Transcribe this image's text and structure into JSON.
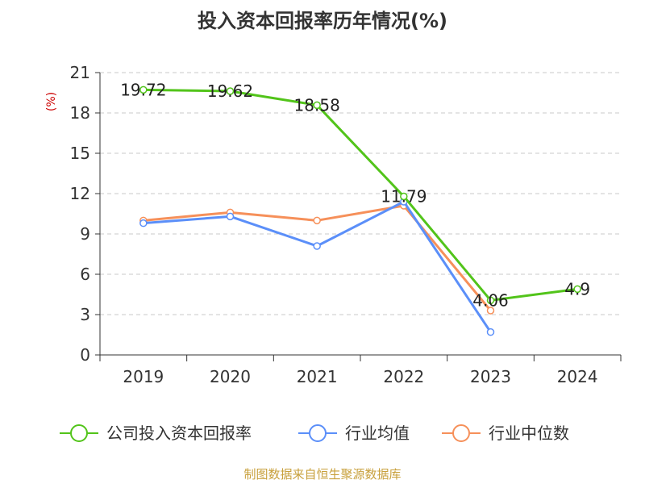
{
  "chart_data": {
    "type": "line",
    "title": "投入资本回报率历年情况(%)",
    "ylabel": "(%)",
    "xlabel": "",
    "categories": [
      "2019",
      "2020",
      "2021",
      "2022",
      "2023",
      "2024"
    ],
    "ylim": [
      0,
      21
    ],
    "yticks": [
      0,
      3,
      6,
      9,
      12,
      15,
      18,
      21
    ],
    "grid": true,
    "legend_position": "bottom",
    "series": [
      {
        "name": "公司投入资本回报率",
        "color": "#52c41a",
        "values": [
          19.72,
          19.62,
          18.58,
          11.79,
          4.06,
          4.9
        ],
        "labels": [
          "19.72",
          "19.62",
          "18.58",
          "11.79",
          "4.06",
          "4.9"
        ]
      },
      {
        "name": "行业均值",
        "color": "#5b8ff9",
        "values": [
          9.8,
          10.3,
          8.1,
          11.4,
          1.7,
          null
        ]
      },
      {
        "name": "行业中位数",
        "color": "#f6905a",
        "values": [
          10.0,
          10.6,
          10.0,
          11.1,
          3.3,
          null
        ]
      }
    ]
  },
  "source": "制图数据来自恒生聚源数据库"
}
